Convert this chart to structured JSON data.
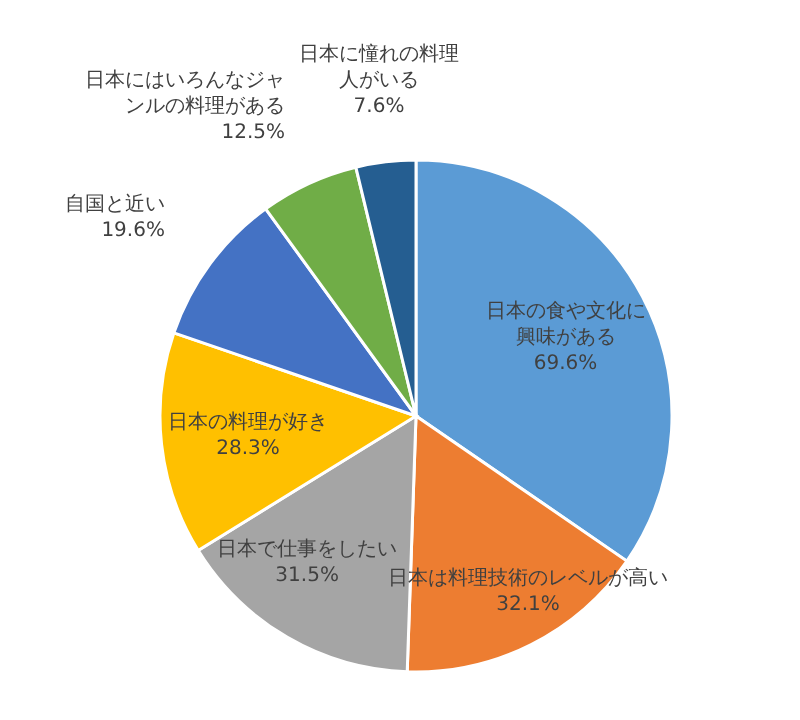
{
  "chart_data": {
    "type": "pie",
    "categories": [
      "日本の食や文化に興味がある",
      "日本は料理技術のレベルが高い",
      "日本で仕事をしたい",
      "日本の料理が好き",
      "自国と近い",
      "日本にはいろんなジャンルの料理がある",
      "日本に憧れの料理人がいる"
    ],
    "values": [
      69.6,
      32.1,
      31.5,
      28.3,
      19.6,
      12.5,
      7.6
    ],
    "value_labels": [
      "69.6%",
      "32.1%",
      "31.5%",
      "28.3%",
      "19.6%",
      "12.5%",
      "7.6%"
    ],
    "colors": [
      "#5b9bd5",
      "#ed7d31",
      "#a5a5a5",
      "#ffc000",
      "#4472c4",
      "#70ad47",
      "#255e91"
    ]
  }
}
